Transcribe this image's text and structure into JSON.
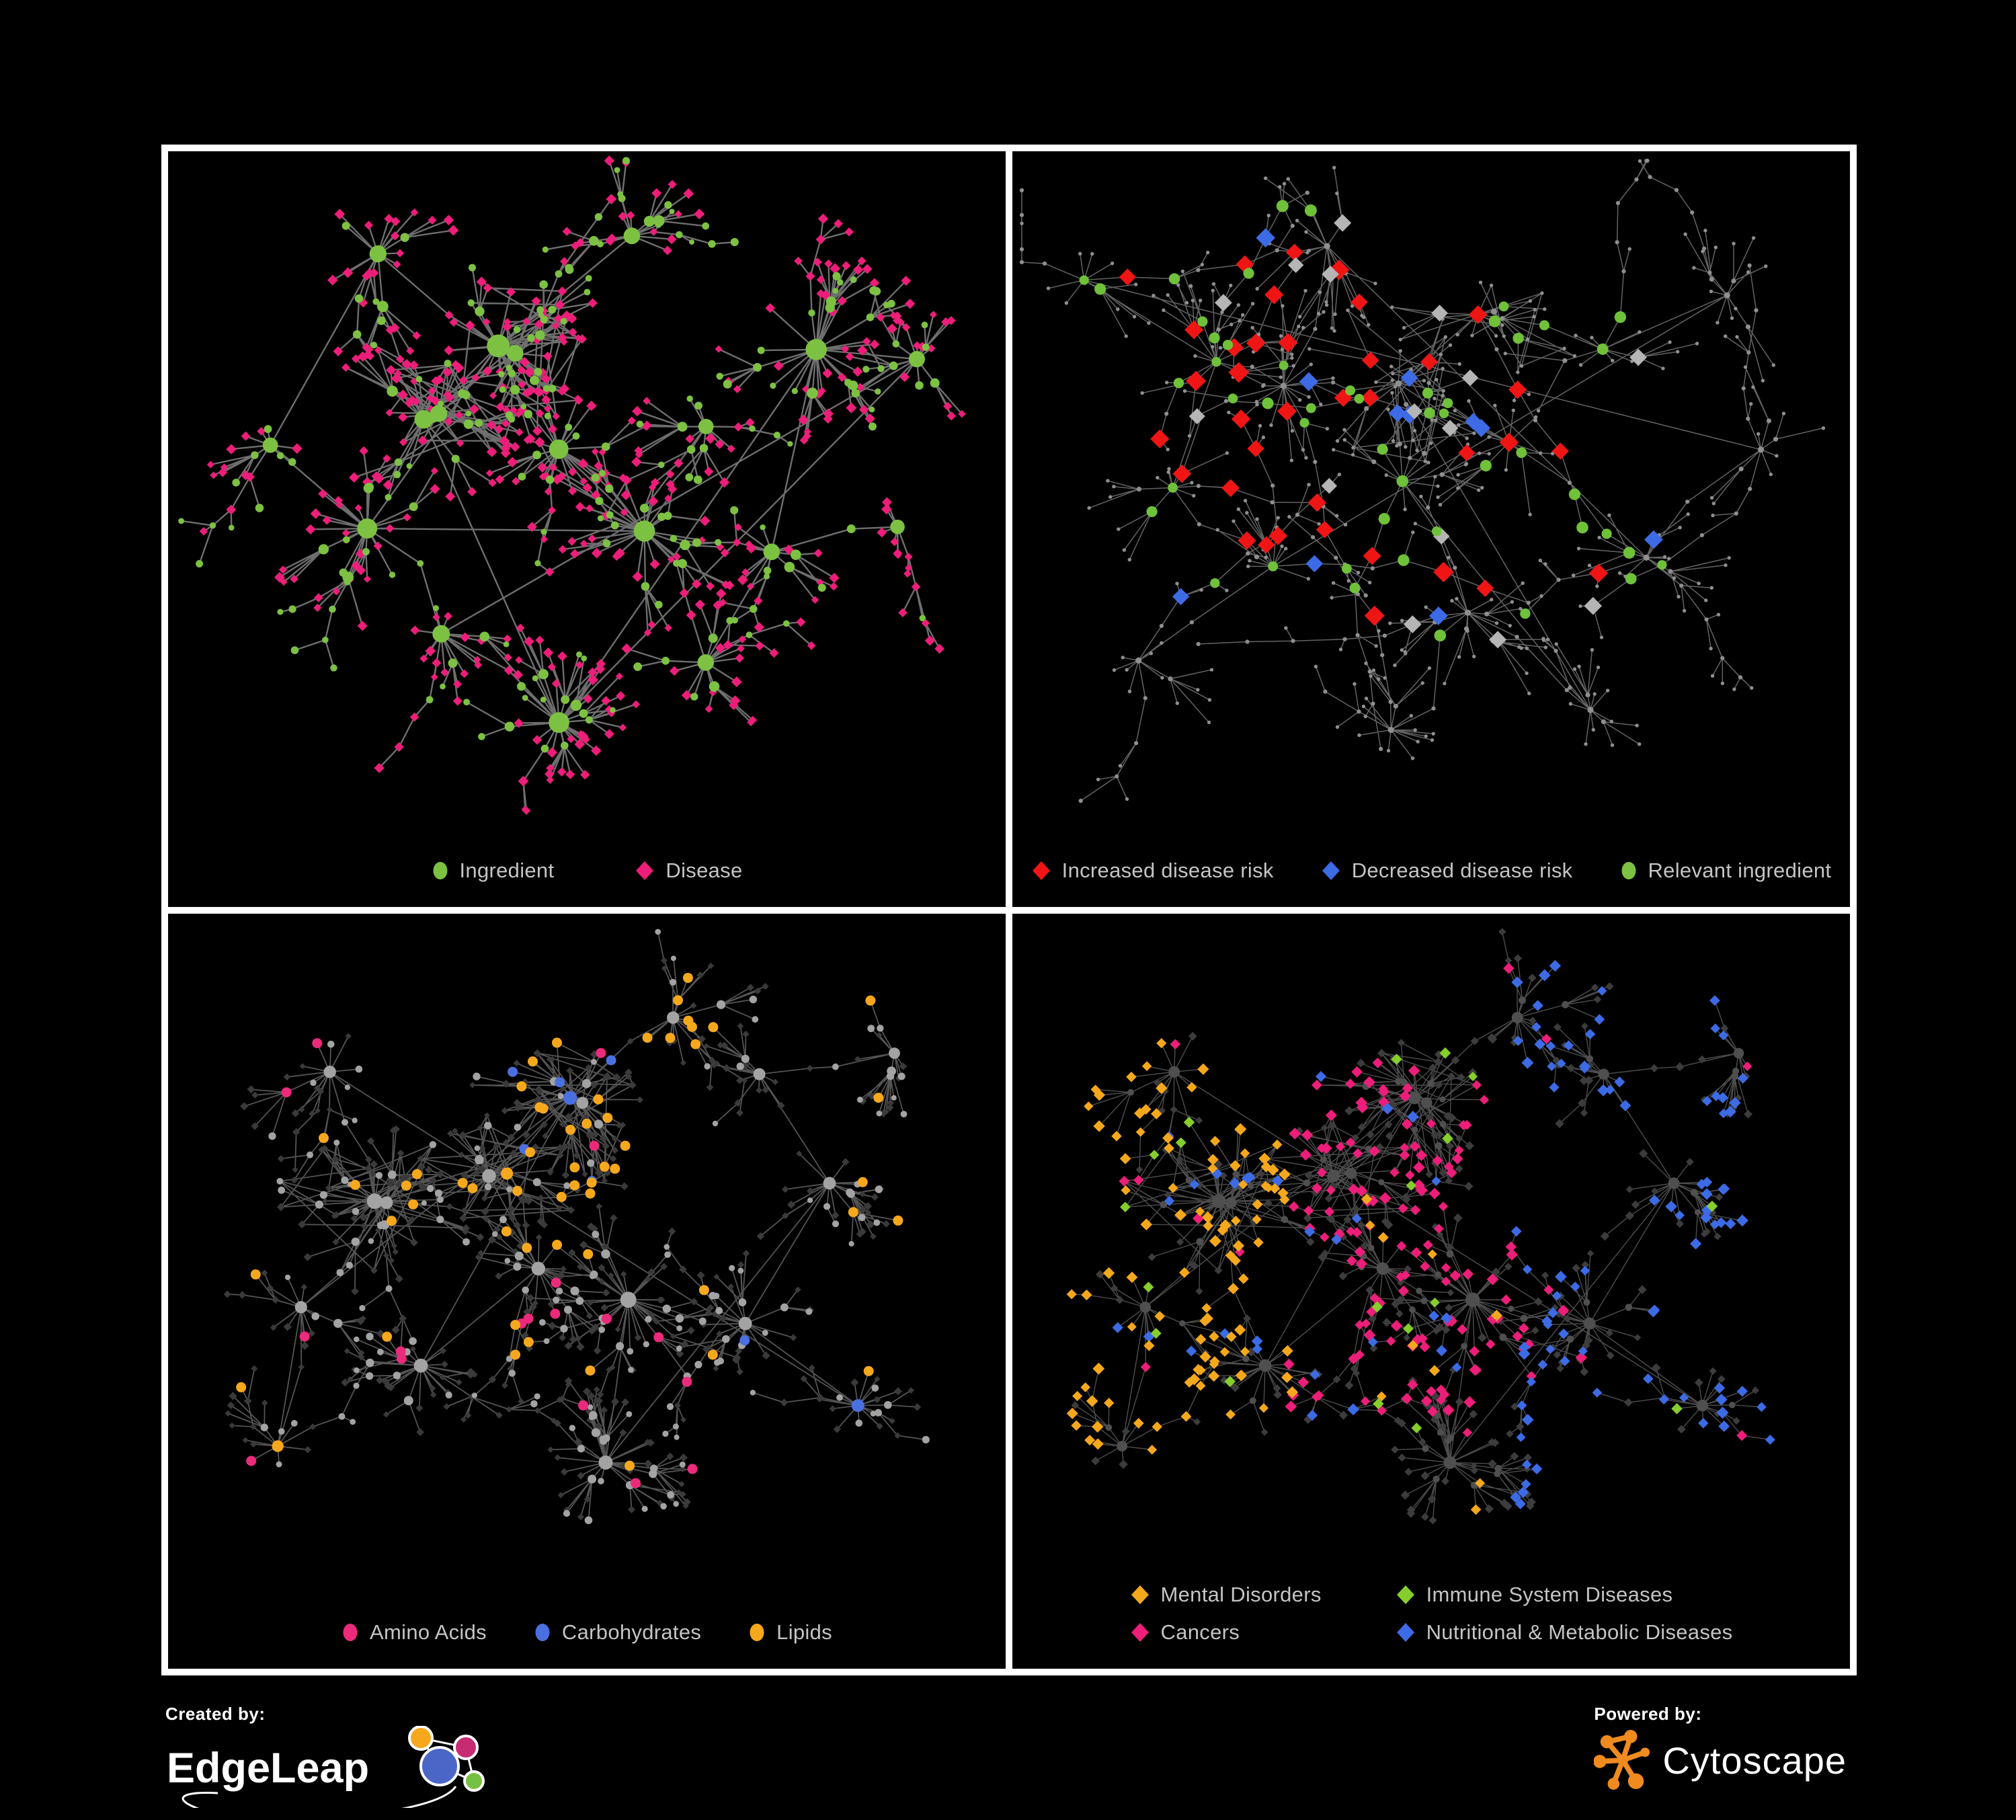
{
  "figure": {
    "background": "#000000",
    "frame_color": "#FFFFFF"
  },
  "panels": [
    {
      "id": "ingredient-disease",
      "legend": [
        {
          "shape": "circle",
          "color": "#7DC142",
          "label": "Ingredient"
        },
        {
          "shape": "diamond",
          "color": "#EC1E79",
          "label": "Disease"
        }
      ],
      "network": {
        "edge_color": "#8A8A8A",
        "colors": {
          "ingredient": "#7DC142",
          "disease": "#EC1E79"
        }
      }
    },
    {
      "id": "disease-risk",
      "legend": [
        {
          "shape": "diamond",
          "color": "#F01515",
          "label": "Increased disease risk"
        },
        {
          "shape": "diamond",
          "color": "#3D6BE5",
          "label": "Decreased disease risk"
        },
        {
          "shape": "circle",
          "color": "#7DC142",
          "label": "Relevant ingredient"
        }
      ],
      "network": {
        "edge_color": "#6E6E6E",
        "colors": {
          "increased": "#F01515",
          "decreased": "#3D6BE5",
          "neutral": "#B5B5B5",
          "ingredient": "#6FC13A",
          "base": "#8F8F8F"
        }
      }
    },
    {
      "id": "ingredient-classes",
      "legend": [
        {
          "shape": "circle",
          "color": "#EC2A7C",
          "label": "Amino Acids"
        },
        {
          "shape": "circle",
          "color": "#4A6FE0",
          "label": "Carbohydrates"
        },
        {
          "shape": "circle",
          "color": "#F6A81C",
          "label": "Lipids"
        }
      ],
      "network": {
        "edge_color": "#A8A8A8",
        "colors": {
          "amino": "#EC2A7C",
          "carb": "#4A6FE0",
          "lipid": "#F6A81C",
          "other": "#A3A3A3",
          "disease": "#3A3A3A"
        }
      }
    },
    {
      "id": "disease-classes",
      "legend": [
        {
          "shape": "diamond",
          "color": "#F6A81C",
          "label": "Mental Disorders"
        },
        {
          "shape": "diamond",
          "color": "#EC1E79",
          "label": "Cancers"
        },
        {
          "shape": "diamond",
          "color": "#85CE2C",
          "label": "Immune System Diseases"
        },
        {
          "shape": "diamond",
          "color": "#3D6BE5",
          "label": "Nutritional & Metabolic Diseases"
        }
      ],
      "network": {
        "edge_color": "#9A9A9A",
        "colors": {
          "mental": "#F6A81C",
          "cancer": "#EC1E79",
          "immune": "#85CE2C",
          "metabolic": "#3D6BE5",
          "disease": "#3C3C3C",
          "ingredient": "#4F4F4F"
        }
      }
    }
  ],
  "footer": {
    "created_by": {
      "label": "Created by:",
      "brand": "EdgeLeap",
      "logo_colors": {
        "orange": "#F6A81C",
        "magenta": "#C72B71",
        "blue": "#4A67C8",
        "green": "#76C043"
      }
    },
    "powered_by": {
      "label": "Powered by:",
      "brand": "Cytoscape",
      "logo_color": "#EF8B1F"
    }
  }
}
